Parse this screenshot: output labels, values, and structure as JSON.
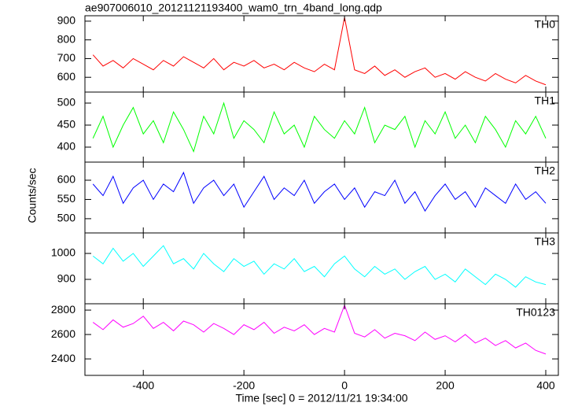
{
  "chart_data": [
    {
      "type": "line",
      "title": "ae907006010_20121121193400_wam0_trn_4band_long.qdp",
      "x": [
        -500,
        -480,
        -460,
        -440,
        -420,
        -400,
        -380,
        -360,
        -340,
        -320,
        -300,
        -280,
        -260,
        -240,
        -220,
        -200,
        -180,
        -160,
        -140,
        -120,
        -100,
        -80,
        -60,
        -40,
        -20,
        0,
        20,
        40,
        60,
        80,
        100,
        120,
        140,
        160,
        180,
        200,
        220,
        240,
        260,
        280,
        300,
        320,
        340,
        360,
        380,
        400
      ],
      "series": [
        {
          "name": "TH0",
          "color": "#ff0000",
          "values": [
            720,
            660,
            690,
            650,
            700,
            670,
            640,
            690,
            660,
            710,
            680,
            650,
            700,
            640,
            680,
            660,
            690,
            650,
            670,
            640,
            680,
            650,
            630,
            670,
            640,
            920,
            640,
            620,
            660,
            610,
            640,
            600,
            630,
            650,
            600,
            620,
            590,
            630,
            600,
            580,
            620,
            590,
            570,
            610,
            580,
            560
          ]
        }
      ],
      "xlim": [
        -516,
        425
      ],
      "ylim": [
        521,
        929
      ],
      "yticks": [
        600,
        700,
        800,
        900
      ]
    },
    {
      "type": "line",
      "x": [
        -500,
        -480,
        -460,
        -440,
        -420,
        -400,
        -380,
        -360,
        -340,
        -320,
        -300,
        -280,
        -260,
        -240,
        -220,
        -200,
        -180,
        -160,
        -140,
        -120,
        -100,
        -80,
        -60,
        -40,
        -20,
        0,
        20,
        40,
        60,
        80,
        100,
        120,
        140,
        160,
        180,
        200,
        220,
        240,
        260,
        280,
        300,
        320,
        340,
        360,
        380,
        400
      ],
      "series": [
        {
          "name": "TH1",
          "color": "#00ff00",
          "values": [
            420,
            470,
            400,
            450,
            490,
            430,
            460,
            410,
            480,
            440,
            390,
            470,
            430,
            500,
            420,
            460,
            440,
            410,
            480,
            430,
            450,
            400,
            470,
            440,
            420,
            460,
            430,
            490,
            410,
            450,
            440,
            470,
            400,
            460,
            430,
            480,
            420,
            450,
            410,
            470,
            440,
            400,
            460,
            430,
            470,
            420
          ]
        }
      ],
      "xlim": [
        -516,
        425
      ],
      "ylim": [
        366,
        525
      ],
      "yticks": [
        400,
        450,
        500
      ]
    },
    {
      "type": "line",
      "ylabel": "Counts/sec",
      "x": [
        -500,
        -480,
        -460,
        -440,
        -420,
        -400,
        -380,
        -360,
        -340,
        -320,
        -300,
        -280,
        -260,
        -240,
        -220,
        -200,
        -180,
        -160,
        -140,
        -120,
        -100,
        -80,
        -60,
        -40,
        -20,
        0,
        20,
        40,
        60,
        80,
        100,
        120,
        140,
        160,
        180,
        200,
        220,
        240,
        260,
        280,
        300,
        320,
        340,
        360,
        380,
        400
      ],
      "series": [
        {
          "name": "TH2",
          "color": "#0000ff",
          "values": [
            590,
            560,
            610,
            540,
            580,
            600,
            550,
            590,
            570,
            620,
            540,
            580,
            600,
            560,
            590,
            530,
            570,
            610,
            550,
            580,
            560,
            600,
            540,
            570,
            590,
            550,
            580,
            530,
            570,
            560,
            600,
            540,
            570,
            520,
            560,
            590,
            550,
            570,
            530,
            580,
            560,
            540,
            590,
            550,
            570,
            540
          ]
        }
      ],
      "xlim": [
        -516,
        425
      ],
      "ylim": [
        463,
        647
      ],
      "yticks": [
        500,
        550,
        600
      ]
    },
    {
      "type": "line",
      "x": [
        -500,
        -480,
        -460,
        -440,
        -420,
        -400,
        -380,
        -360,
        -340,
        -320,
        -300,
        -280,
        -260,
        -240,
        -220,
        -200,
        -180,
        -160,
        -140,
        -120,
        -100,
        -80,
        -60,
        -40,
        -20,
        0,
        20,
        40,
        60,
        80,
        100,
        120,
        140,
        160,
        180,
        200,
        220,
        240,
        260,
        280,
        300,
        320,
        340,
        360,
        380,
        400
      ],
      "series": [
        {
          "name": "TH3",
          "color": "#00ffff",
          "values": [
            990,
            960,
            1020,
            970,
            1000,
            950,
            990,
            1030,
            960,
            980,
            940,
            1000,
            960,
            930,
            980,
            950,
            970,
            920,
            960,
            940,
            980,
            930,
            950,
            910,
            960,
            990,
            940,
            910,
            950,
            920,
            940,
            900,
            930,
            950,
            900,
            920,
            890,
            940,
            910,
            880,
            920,
            900,
            870,
            910,
            890,
            880
          ]
        }
      ],
      "xlim": [
        -516,
        425
      ],
      "ylim": [
        806,
        1079
      ],
      "yticks": [
        900,
        1000
      ]
    },
    {
      "type": "line",
      "xlabel": "Time [sec] 0 = 2012/11/21 19:34:00",
      "x": [
        -500,
        -480,
        -460,
        -440,
        -420,
        -400,
        -380,
        -360,
        -340,
        -320,
        -300,
        -280,
        -260,
        -240,
        -220,
        -200,
        -180,
        -160,
        -140,
        -120,
        -100,
        -80,
        -60,
        -40,
        -20,
        0,
        20,
        40,
        60,
        80,
        100,
        120,
        140,
        160,
        180,
        200,
        220,
        240,
        260,
        280,
        300,
        320,
        340,
        360,
        380,
        400
      ],
      "series": [
        {
          "name": "TH0123",
          "color": "#ff00ff",
          "values": [
            2700,
            2640,
            2720,
            2660,
            2690,
            2750,
            2650,
            2700,
            2630,
            2710,
            2680,
            2620,
            2690,
            2650,
            2600,
            2680,
            2640,
            2700,
            2610,
            2660,
            2630,
            2680,
            2600,
            2650,
            2620,
            2840,
            2610,
            2580,
            2640,
            2570,
            2610,
            2590,
            2550,
            2620,
            2560,
            2590,
            2540,
            2600,
            2530,
            2570,
            2510,
            2550,
            2490,
            2530,
            2470,
            2440
          ]
        }
      ],
      "xlim": [
        -516,
        425
      ],
      "ylim": [
        2265,
        2852
      ],
      "yticks": [
        2400,
        2600,
        2800
      ],
      "xticks": [
        -400,
        -200,
        0,
        200,
        400
      ]
    }
  ]
}
